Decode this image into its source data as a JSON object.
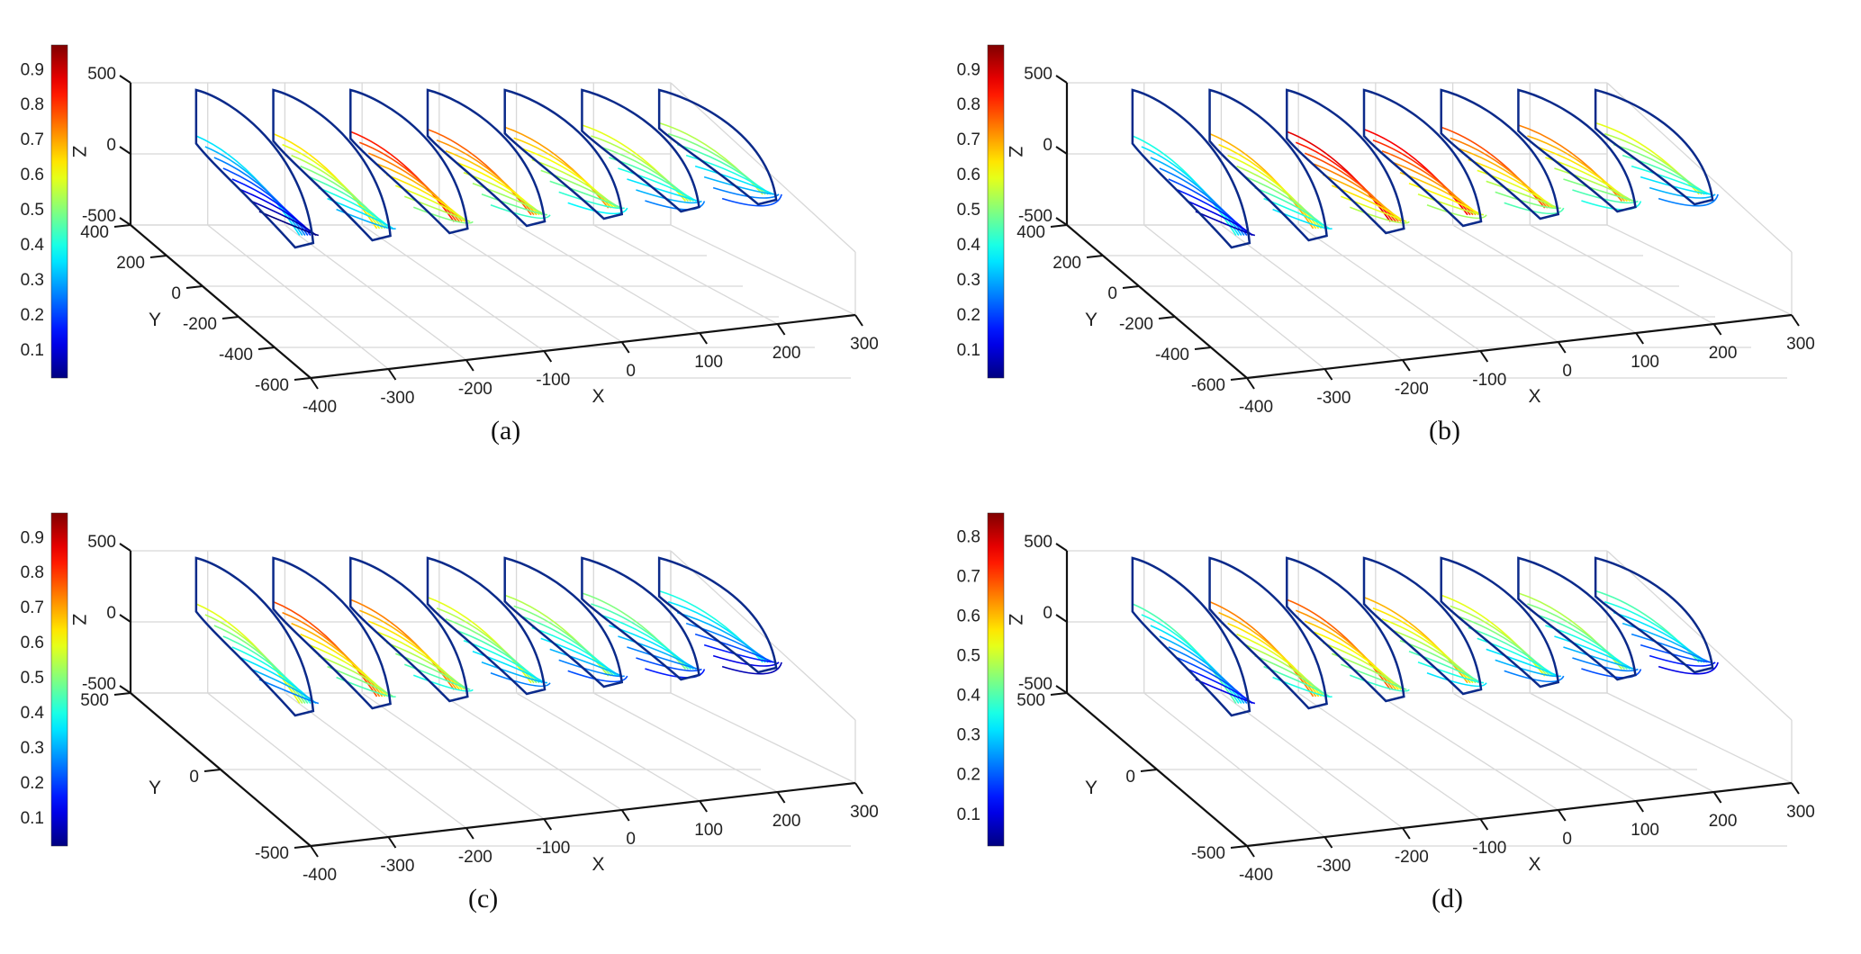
{
  "chart_data": [
    {
      "type": "contour-slices-3d",
      "panel": "a",
      "caption": "(a)",
      "xlabel": "X",
      "ylabel": "Y",
      "zlabel": "Z",
      "xticks": [
        "-400",
        "-300",
        "-200",
        "-100",
        "0",
        "100",
        "200",
        "300"
      ],
      "yticks": [
        "400",
        "200",
        "0",
        "-200",
        "-400",
        "-600"
      ],
      "zticks": [
        "500",
        "0",
        "-500"
      ],
      "xlim": [
        -400,
        300
      ],
      "ylim": [
        -600,
        400
      ],
      "zlim": [
        -500,
        500
      ],
      "colorbar": {
        "ticks": [
          "0.9",
          "0.8",
          "0.7",
          "0.6",
          "0.5",
          "0.4",
          "0.3",
          "0.2",
          "0.1"
        ],
        "range": [
          0.02,
          0.97
        ],
        "colormap": "jet"
      },
      "slices": [
        {
          "x": -350,
          "level": 0.35
        },
        {
          "x": -250,
          "level": 0.65
        },
        {
          "x": -150,
          "level": 0.85
        },
        {
          "x": -50,
          "level": 0.78
        },
        {
          "x": 50,
          "level": 0.72
        },
        {
          "x": 150,
          "level": 0.6
        },
        {
          "x": 250,
          "level": 0.55
        }
      ]
    },
    {
      "type": "contour-slices-3d",
      "panel": "b",
      "caption": "(b)",
      "xlabel": "X",
      "ylabel": "Y",
      "zlabel": "Z",
      "xticks": [
        "-400",
        "-300",
        "-200",
        "-100",
        "0",
        "100",
        "200",
        "300"
      ],
      "yticks": [
        "400",
        "200",
        "0",
        "-200",
        "-400",
        "-600"
      ],
      "zticks": [
        "500",
        "0",
        "-500"
      ],
      "xlim": [
        -400,
        300
      ],
      "ylim": [
        -600,
        400
      ],
      "zlim": [
        -500,
        500
      ],
      "colorbar": {
        "ticks": [
          "0.9",
          "0.8",
          "0.7",
          "0.6",
          "0.5",
          "0.4",
          "0.3",
          "0.2",
          "0.1"
        ],
        "range": [
          0.02,
          0.97
        ],
        "colormap": "jet"
      },
      "slices": [
        {
          "x": -350,
          "level": 0.4
        },
        {
          "x": -250,
          "level": 0.7
        },
        {
          "x": -150,
          "level": 0.9
        },
        {
          "x": -50,
          "level": 0.88
        },
        {
          "x": 50,
          "level": 0.8
        },
        {
          "x": 150,
          "level": 0.75
        },
        {
          "x": 250,
          "level": 0.6
        }
      ]
    },
    {
      "type": "contour-slices-3d",
      "panel": "c",
      "caption": "(c)",
      "xlabel": "X",
      "ylabel": "Y",
      "zlabel": "Z",
      "xticks": [
        "-400",
        "-300",
        "-200",
        "-100",
        "0",
        "100",
        "200",
        "300"
      ],
      "yticks": [
        "500",
        "0",
        "-500"
      ],
      "zticks": [
        "500",
        "0",
        "-500"
      ],
      "xlim": [
        -400,
        300
      ],
      "ylim": [
        -500,
        500
      ],
      "zlim": [
        -500,
        500
      ],
      "colorbar": {
        "ticks": [
          "0.9",
          "0.8",
          "0.7",
          "0.6",
          "0.5",
          "0.4",
          "0.3",
          "0.2",
          "0.1"
        ],
        "range": [
          0.02,
          0.97
        ],
        "colormap": "jet"
      },
      "slices": [
        {
          "x": -350,
          "level": 0.6
        },
        {
          "x": -250,
          "level": 0.8
        },
        {
          "x": -150,
          "level": 0.75
        },
        {
          "x": -50,
          "level": 0.6
        },
        {
          "x": 50,
          "level": 0.55
        },
        {
          "x": 150,
          "level": 0.5
        },
        {
          "x": 250,
          "level": 0.4
        }
      ]
    },
    {
      "type": "contour-slices-3d",
      "panel": "d",
      "caption": "(d)",
      "xlabel": "X",
      "ylabel": "Y",
      "zlabel": "Z",
      "xticks": [
        "-400",
        "-300",
        "-200",
        "-100",
        "0",
        "100",
        "200",
        "300"
      ],
      "yticks": [
        "500",
        "0",
        "-500"
      ],
      "zticks": [
        "500",
        "0",
        "-500"
      ],
      "xlim": [
        -400,
        300
      ],
      "ylim": [
        -500,
        500
      ],
      "zlim": [
        -500,
        500
      ],
      "colorbar": {
        "ticks": [
          "0.8",
          "0.7",
          "0.6",
          "0.5",
          "0.4",
          "0.3",
          "0.2",
          "0.1"
        ],
        "range": [
          0.02,
          0.86
        ],
        "colormap": "jet"
      },
      "slices": [
        {
          "x": -350,
          "level": 0.45
        },
        {
          "x": -250,
          "level": 0.75
        },
        {
          "x": -150,
          "level": 0.78
        },
        {
          "x": -50,
          "level": 0.7
        },
        {
          "x": 50,
          "level": 0.6
        },
        {
          "x": 150,
          "level": 0.55
        },
        {
          "x": 250,
          "level": 0.45
        }
      ]
    }
  ]
}
